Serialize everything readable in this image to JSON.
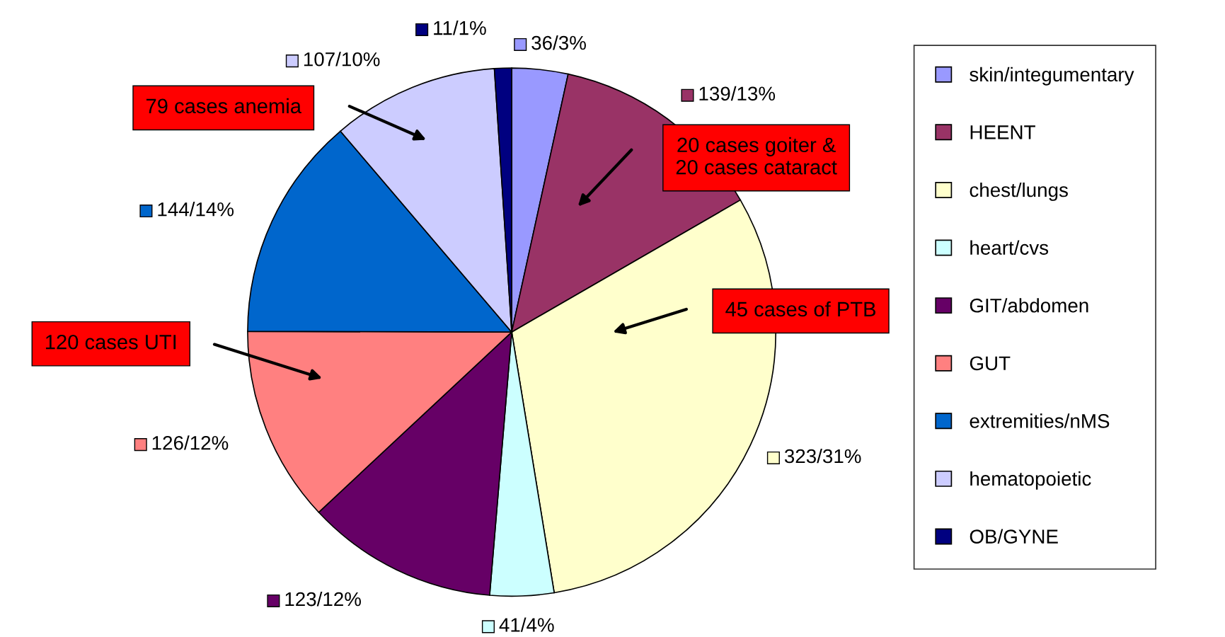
{
  "chart_data": {
    "type": "pie",
    "categories": [
      "skin/integumentary",
      "HEENT",
      "chest/lungs",
      "heart/cvs",
      "GIT/abdomen",
      "GUT",
      "extremities/nMS",
      "hematopoietic",
      "OB/GYNE"
    ],
    "values": [
      36,
      139,
      323,
      41,
      123,
      126,
      144,
      107,
      11
    ],
    "colors": [
      "#9999ff",
      "#993366",
      "#ffffcc",
      "#ccffff",
      "#660066",
      "#ff8080",
      "#0066cc",
      "#ccccff",
      "#000080"
    ],
    "value_labels": [
      "36/3%",
      "139/13%",
      "323/31%",
      "41/4%",
      "123/12%",
      "126/12%",
      "144/14%",
      "107/10%",
      "11/1%"
    ],
    "annotations": [
      "79 cases anemia",
      "20 cases goiter &\n20 cases cataract",
      "45 cases of PTB",
      "120 cases UTI"
    ],
    "legend": "right"
  }
}
